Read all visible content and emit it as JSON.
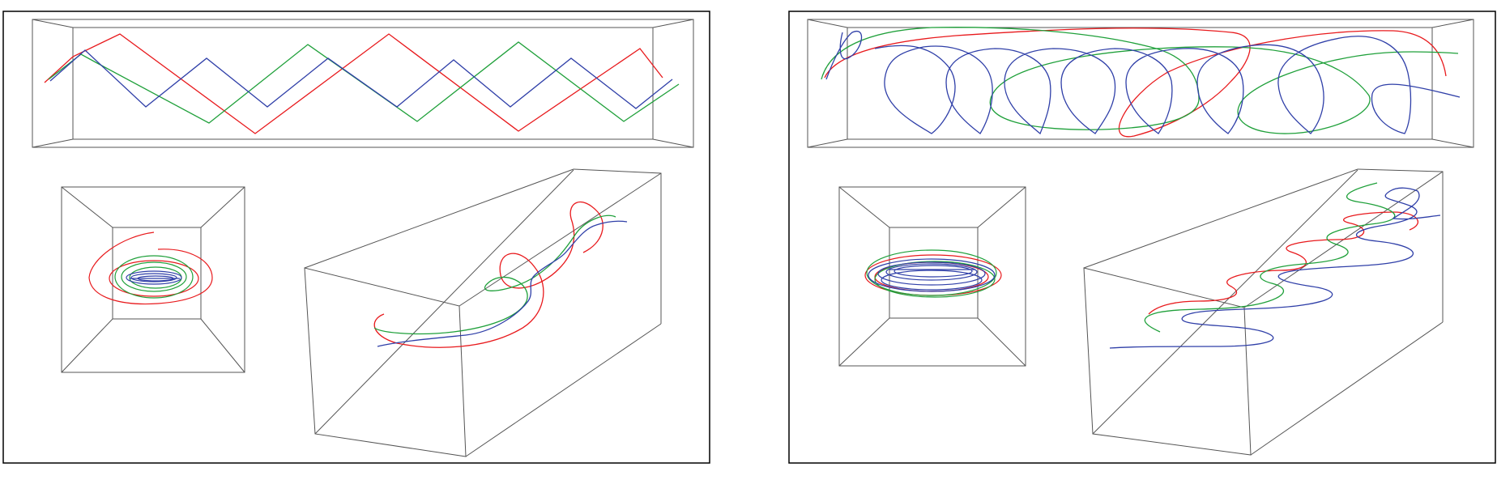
{
  "colors": {
    "background": "#ffffff",
    "frame": "#000000",
    "box": "#555555",
    "red": "#e8191c",
    "green": "#1fa03a",
    "blue": "#2f3fa8"
  },
  "panels": [
    {
      "id": "left",
      "description_hidden": true
    },
    {
      "id": "right",
      "description_hidden": true
    }
  ]
}
